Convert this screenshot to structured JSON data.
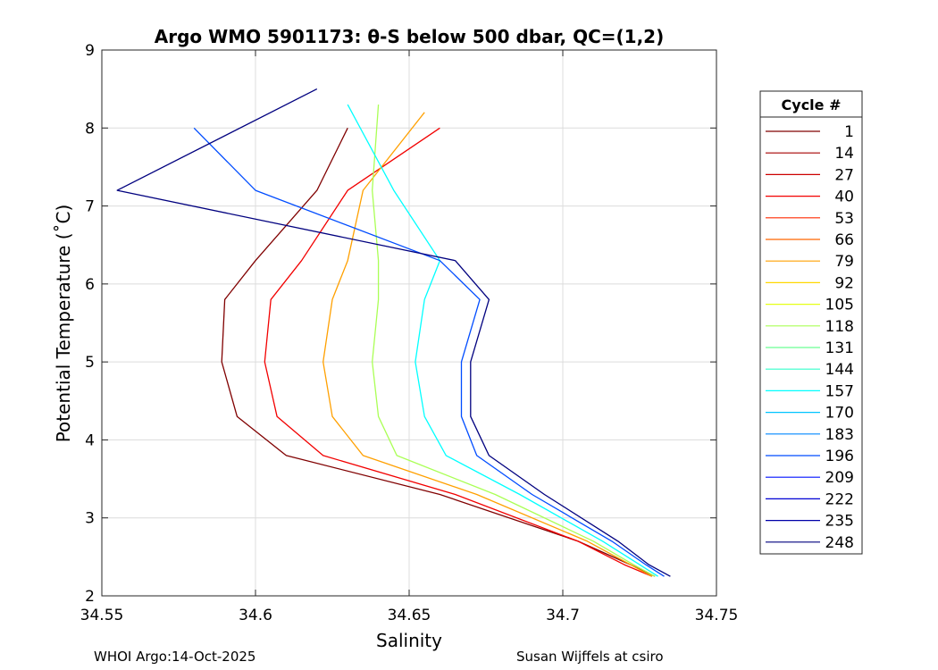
{
  "chart_data": {
    "type": "line",
    "title": "Argo WMO 5901173: θ-S below 500 dbar,  QC=(1,2)",
    "xlabel": "Salinity",
    "ylabel": "Potential Temperature (˚C)",
    "xlim": [
      34.55,
      34.75
    ],
    "ylim": [
      2,
      9
    ],
    "xticks": [
      34.55,
      34.6,
      34.65,
      34.7,
      34.75
    ],
    "xtick_labels": [
      "34.55",
      "34.6",
      "34.65",
      "34.7",
      "34.75"
    ],
    "yticks": [
      2,
      3,
      4,
      5,
      6,
      7,
      8,
      9
    ],
    "ytick_labels": [
      "2",
      "3",
      "4",
      "5",
      "6",
      "7",
      "8",
      "9"
    ],
    "grid": true,
    "legend": {
      "title": "Cycle #",
      "placement": "right-outside",
      "entries": [
        "1",
        "14",
        "27",
        "40",
        "53",
        "66",
        "79",
        "92",
        "105",
        "118",
        "131",
        "144",
        "157",
        "170",
        "183",
        "196",
        "209",
        "222",
        "235",
        "248"
      ],
      "colors": [
        "#800000",
        "#a50000",
        "#cc0000",
        "#f20000",
        "#ff2a00",
        "#ff6600",
        "#ffa000",
        "#ffd700",
        "#e6ff18",
        "#aaff55",
        "#6bff94",
        "#33ffcc",
        "#00ffff",
        "#00c4ff",
        "#0088ff",
        "#004cff",
        "#0012ff",
        "#0000d4",
        "#0000a8",
        "#00007f"
      ]
    },
    "series": [
      {
        "name": "1",
        "salinity": [
          34.73,
          34.722,
          34.705,
          34.66,
          34.61,
          34.594,
          34.589,
          34.59,
          34.6,
          34.62,
          34.63
        ],
        "temperature": [
          2.25,
          2.4,
          2.7,
          3.3,
          3.8,
          4.3,
          5.0,
          5.8,
          6.3,
          7.2,
          8.0
        ]
      },
      {
        "name": "40",
        "salinity": [
          34.729,
          34.72,
          34.705,
          34.665,
          34.622,
          34.607,
          34.603,
          34.605,
          34.615,
          34.63,
          34.66
        ],
        "temperature": [
          2.25,
          2.4,
          2.7,
          3.3,
          3.8,
          4.3,
          5.0,
          5.8,
          6.3,
          7.2,
          8.0
        ]
      },
      {
        "name": "79",
        "salinity": [
          34.729,
          34.722,
          34.708,
          34.672,
          34.635,
          34.625,
          34.622,
          34.625,
          34.63,
          34.635,
          34.655
        ],
        "temperature": [
          2.25,
          2.4,
          2.7,
          3.3,
          3.8,
          4.3,
          5.0,
          5.8,
          6.3,
          7.2,
          8.2
        ]
      },
      {
        "name": "118",
        "salinity": [
          34.73,
          34.723,
          34.71,
          34.678,
          34.646,
          34.64,
          34.638,
          34.64,
          34.64,
          34.638,
          34.64
        ],
        "temperature": [
          2.25,
          2.4,
          2.7,
          3.3,
          3.8,
          4.3,
          5.0,
          5.8,
          6.3,
          7.2,
          8.3
        ]
      },
      {
        "name": "157",
        "salinity": [
          34.731,
          34.725,
          34.713,
          34.686,
          34.662,
          34.655,
          34.652,
          34.655,
          34.66,
          34.645,
          34.63
        ],
        "temperature": [
          2.25,
          2.4,
          2.7,
          3.3,
          3.8,
          4.3,
          5.0,
          5.8,
          6.3,
          7.2,
          8.3
        ]
      },
      {
        "name": "196",
        "salinity": [
          34.733,
          34.727,
          34.716,
          34.69,
          34.672,
          34.667,
          34.667,
          34.673,
          34.66,
          34.6,
          34.58
        ],
        "temperature": [
          2.25,
          2.4,
          2.7,
          3.3,
          3.8,
          4.3,
          5.0,
          5.8,
          6.3,
          7.2,
          8.0
        ]
      },
      {
        "name": "248",
        "salinity": [
          34.735,
          34.728,
          34.718,
          34.694,
          34.676,
          34.67,
          34.67,
          34.676,
          34.665,
          34.555,
          34.62
        ],
        "temperature": [
          2.25,
          2.4,
          2.7,
          3.3,
          3.8,
          4.3,
          5.0,
          5.8,
          6.3,
          7.2,
          8.5
        ]
      }
    ]
  },
  "footer": {
    "left": "WHOI Argo:14-Oct-2025",
    "right": "Susan Wijffels at csiro"
  }
}
